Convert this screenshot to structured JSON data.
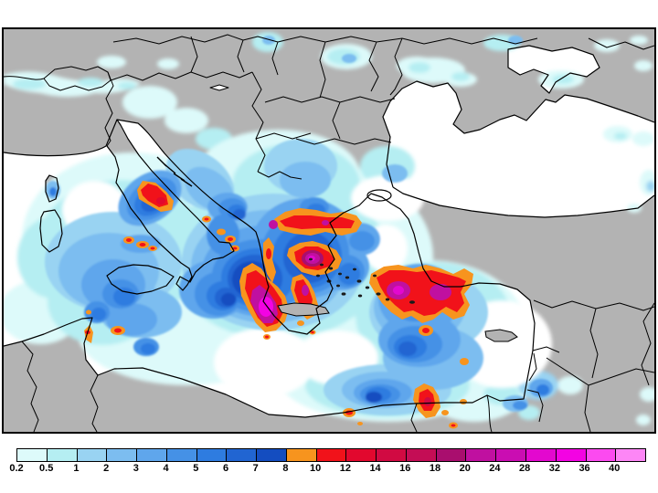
{
  "window": {
    "background_color": "#ffffff"
  },
  "map": {
    "land_color": "#b3b3b3",
    "sea_color": "#ffffff",
    "outline_color": "#000000"
  },
  "colorbar": {
    "labels": [
      "0.2",
      "0.5",
      "1",
      "2",
      "3",
      "4",
      "5",
      "6",
      "7",
      "8",
      "10",
      "12",
      "14",
      "16",
      "18",
      "20",
      "24",
      "28",
      "32",
      "36",
      "40"
    ],
    "colors": [
      "#ddfafa",
      "#b5eef2",
      "#99d3f2",
      "#7cbdf0",
      "#5fa6ec",
      "#4591e6",
      "#2e7ce0",
      "#2165d2",
      "#144dc0",
      "#f7941e",
      "#f1121a",
      "#e2082e",
      "#d10a42",
      "#c40d55",
      "#a90e6e",
      "#c010a0",
      "#ca0db2",
      "#e308cf",
      "#f303e3",
      "#fc4af0",
      "#fd86f6"
    ]
  },
  "chart_data": {
    "type": "heatmap",
    "title": "",
    "legend_values": [
      0.2,
      0.5,
      1,
      2,
      3,
      4,
      5,
      6,
      7,
      8,
      10,
      12,
      14,
      16,
      18,
      20,
      24,
      28,
      32,
      36,
      40
    ],
    "legend_colors": [
      "#ddfafa",
      "#b5eef2",
      "#99d3f2",
      "#7cbdf0",
      "#5fa6ec",
      "#4591e6",
      "#2e7ce0",
      "#2165d2",
      "#144dc0",
      "#f7941e",
      "#f1121a",
      "#e2082e",
      "#d10a42",
      "#c40d55",
      "#a90e6e",
      "#c010a0",
      "#ca0db2",
      "#e308cf",
      "#f303e3",
      "#fc4af0",
      "#fd86f6"
    ],
    "legend_position": "bottom"
  }
}
